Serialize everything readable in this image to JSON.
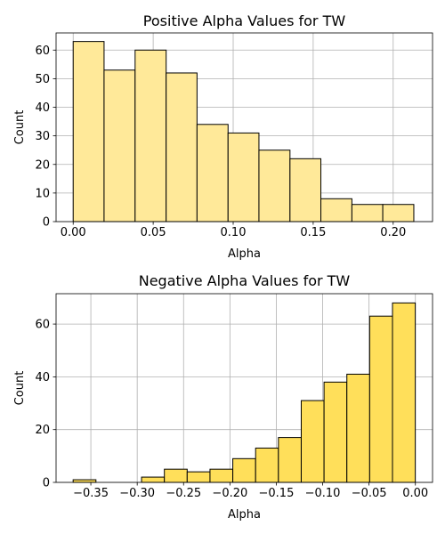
{
  "chart_data": [
    {
      "type": "bar",
      "title": "Positive Alpha Values for TW",
      "xlabel": "Alpha",
      "ylabel": "Count",
      "color": "#ffe999",
      "edge_color": "#000000",
      "grid": true,
      "xlim": [
        -0.0107,
        0.2246
      ],
      "ylim": [
        0,
        66
      ],
      "xticks": [
        0.0,
        0.05,
        0.1,
        0.15,
        0.2
      ],
      "xtick_labels": [
        "0.00",
        "0.05",
        "0.10",
        "0.15",
        "0.20"
      ],
      "yticks": [
        0,
        10,
        20,
        30,
        40,
        50,
        60
      ],
      "ytick_labels": [
        "0",
        "10",
        "20",
        "30",
        "40",
        "50",
        "60"
      ],
      "bins": [
        {
          "start": 0.0,
          "end": 0.0193,
          "count": 63
        },
        {
          "start": 0.0193,
          "end": 0.0387,
          "count": 53
        },
        {
          "start": 0.0387,
          "end": 0.0581,
          "count": 60
        },
        {
          "start": 0.0581,
          "end": 0.0774,
          "count": 52
        },
        {
          "start": 0.0774,
          "end": 0.0968,
          "count": 34
        },
        {
          "start": 0.0968,
          "end": 0.1161,
          "count": 31
        },
        {
          "start": 0.1161,
          "end": 0.1355,
          "count": 25
        },
        {
          "start": 0.1355,
          "end": 0.1548,
          "count": 22
        },
        {
          "start": 0.1548,
          "end": 0.1742,
          "count": 8
        },
        {
          "start": 0.1742,
          "end": 0.1935,
          "count": 6
        },
        {
          "start": 0.1935,
          "end": 0.2129,
          "count": 6
        }
      ]
    },
    {
      "type": "bar",
      "title": "Negative Alpha Values for TW",
      "xlabel": "Alpha",
      "ylabel": "Count",
      "color": "#ffdf5a",
      "edge_color": "#000000",
      "grid": true,
      "xlim": [
        -0.3875,
        0.0185
      ],
      "ylim": [
        0,
        71.5
      ],
      "xticks": [
        -0.35,
        -0.3,
        -0.25,
        -0.2,
        -0.15,
        -0.1,
        -0.05,
        0.0
      ],
      "xtick_labels": [
        "−0.35",
        "−0.30",
        "−0.25",
        "−0.20",
        "−0.15",
        "−0.10",
        "−0.05",
        "0.00"
      ],
      "yticks": [
        0,
        20,
        40,
        60
      ],
      "ytick_labels": [
        "0",
        "20",
        "40",
        "60"
      ],
      "bins": [
        {
          "start": -0.3691,
          "end": -0.3445,
          "count": 1
        },
        {
          "start": -0.3445,
          "end": -0.3199,
          "count": 0
        },
        {
          "start": -0.3199,
          "end": -0.2953,
          "count": 0
        },
        {
          "start": -0.2953,
          "end": -0.2707,
          "count": 2
        },
        {
          "start": -0.2707,
          "end": -0.2461,
          "count": 5
        },
        {
          "start": -0.2461,
          "end": -0.2215,
          "count": 4
        },
        {
          "start": -0.2215,
          "end": -0.1969,
          "count": 5
        },
        {
          "start": -0.1969,
          "end": -0.1723,
          "count": 9
        },
        {
          "start": -0.1723,
          "end": -0.1477,
          "count": 13
        },
        {
          "start": -0.1477,
          "end": -0.1231,
          "count": 17
        },
        {
          "start": -0.1231,
          "end": -0.0985,
          "count": 31
        },
        {
          "start": -0.0985,
          "end": -0.0739,
          "count": 38
        },
        {
          "start": -0.0739,
          "end": -0.0493,
          "count": 41
        },
        {
          "start": -0.0493,
          "end": -0.0247,
          "count": 63
        },
        {
          "start": -0.0247,
          "end": -0.0001,
          "count": 68
        }
      ]
    }
  ]
}
